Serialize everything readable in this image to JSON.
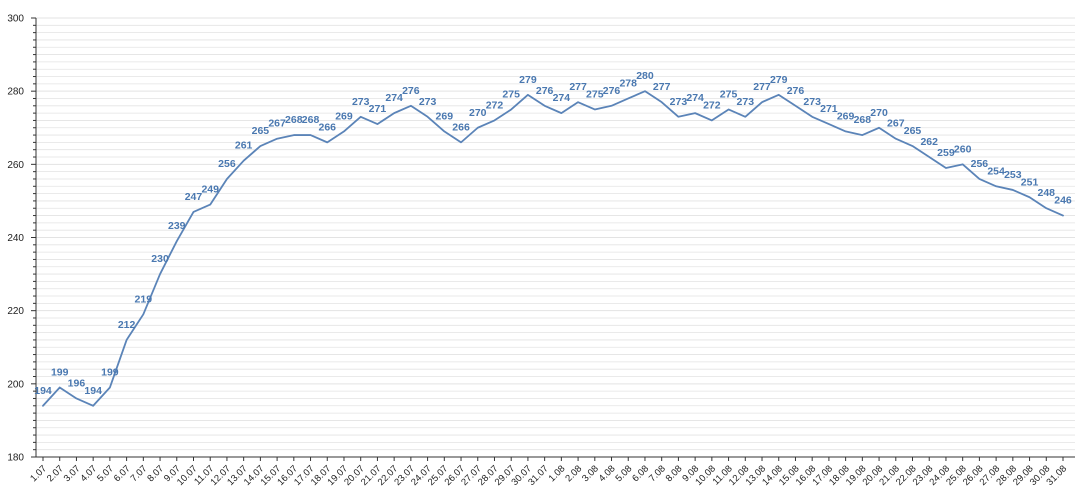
{
  "chart_data": {
    "type": "line",
    "title": "",
    "xlabel": "",
    "ylabel": "",
    "ylim": [
      180,
      300
    ],
    "y_ticks": [
      180,
      200,
      220,
      240,
      260,
      280,
      300
    ],
    "grid": true,
    "legend": "none",
    "colors": {
      "line": "#5b84b8",
      "label": "#4a78b0",
      "grid": "#e3e3e3",
      "axis": "#333333"
    },
    "categories": [
      "1.07",
      "2.07",
      "3.07",
      "4.07",
      "5.07",
      "6.07",
      "7.07",
      "8.07",
      "9.07",
      "10.07",
      "11.07",
      "12.07",
      "13.07",
      "14.07",
      "15.07",
      "16.07",
      "17.07",
      "18.07",
      "19.07",
      "20.07",
      "21.07",
      "22.07",
      "23.07",
      "24.07",
      "25.07",
      "26.07",
      "27.07",
      "28.07",
      "29.07",
      "30.07",
      "31.07",
      "1.08",
      "2.08",
      "3.08",
      "4.08",
      "5.08",
      "6.08",
      "7.08",
      "8.08",
      "9.08",
      "10.08",
      "11.08",
      "12.08",
      "13.08",
      "14.08",
      "15.08",
      "16.08",
      "17.08",
      "18.08",
      "19.08",
      "20.08",
      "21.08",
      "22.08",
      "23.08",
      "24.08",
      "25.08",
      "26.08",
      "27.08",
      "28.08",
      "29.08",
      "30.08",
      "31.08"
    ],
    "series": [
      {
        "values": [
          194,
          199,
          196,
          194,
          199,
          212,
          219,
          230,
          239,
          247,
          249,
          256,
          261,
          265,
          267,
          268,
          268,
          266,
          269,
          273,
          271,
          274,
          276,
          273,
          269,
          266,
          270,
          272,
          275,
          279,
          276,
          274,
          277,
          275,
          276,
          278,
          280,
          277,
          273,
          274,
          272,
          275,
          273,
          277,
          279,
          276,
          273,
          271,
          269,
          268,
          270,
          267,
          265,
          262,
          259,
          260,
          256,
          254,
          253,
          251,
          248,
          246
        ]
      }
    ]
  }
}
